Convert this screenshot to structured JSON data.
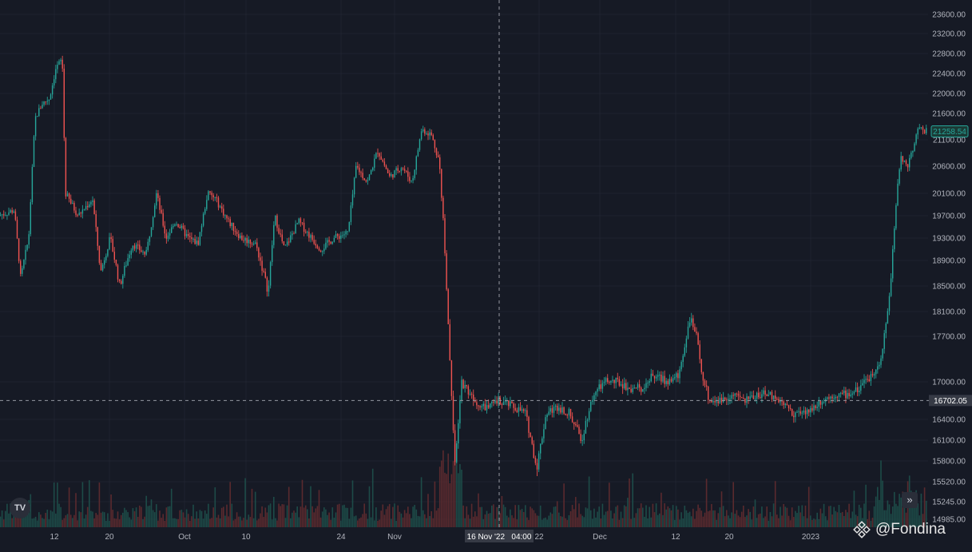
{
  "chart_data": {
    "type": "candlestick",
    "price_axis": {
      "ticks": [
        "23600.00",
        "23200.00",
        "22800.00",
        "22400.00",
        "22000.00",
        "21600.00",
        "21100.00",
        "20600.00",
        "20100.00",
        "19700.00",
        "19300.00",
        "18900.00",
        "18500.00",
        "18100.00",
        "17700.00",
        "17000.00",
        "16400.00",
        "16100.00",
        "15800.00",
        "15520.00",
        "15245.00",
        "14985.00"
      ],
      "last_price_label": "21258.54",
      "crosshair_price_label": "16702.05"
    },
    "time_axis": {
      "ticks": [
        "12",
        "20",
        "Oct",
        "10",
        "24",
        "Nov",
        "22",
        "Dec",
        "12",
        "20",
        "2023"
      ],
      "crosshair_time_label": "16 Nov '22   04:00"
    },
    "series_path": [
      [
        0,
        19700
      ],
      [
        20,
        19800
      ],
      [
        28,
        18600
      ],
      [
        38,
        19300
      ],
      [
        46,
        21500
      ],
      [
        55,
        21800
      ],
      [
        64,
        21900
      ],
      [
        72,
        22500
      ],
      [
        80,
        22700
      ],
      [
        84,
        20100
      ],
      [
        100,
        19700
      ],
      [
        118,
        20000
      ],
      [
        128,
        18700
      ],
      [
        140,
        19300
      ],
      [
        152,
        18500
      ],
      [
        168,
        19200
      ],
      [
        185,
        19000
      ],
      [
        198,
        20100
      ],
      [
        210,
        19300
      ],
      [
        222,
        19600
      ],
      [
        238,
        19300
      ],
      [
        250,
        19200
      ],
      [
        262,
        20100
      ],
      [
        272,
        20000
      ],
      [
        288,
        19600
      ],
      [
        304,
        19300
      ],
      [
        322,
        19200
      ],
      [
        338,
        18400
      ],
      [
        346,
        19700
      ],
      [
        358,
        19100
      ],
      [
        376,
        19600
      ],
      [
        392,
        19300
      ],
      [
        404,
        19100
      ],
      [
        420,
        19300
      ],
      [
        438,
        19400
      ],
      [
        448,
        20600
      ],
      [
        462,
        20300
      ],
      [
        475,
        20900
      ],
      [
        490,
        20400
      ],
      [
        505,
        20600
      ],
      [
        518,
        20300
      ],
      [
        530,
        21300
      ],
      [
        542,
        21200
      ],
      [
        552,
        20700
      ],
      [
        558,
        19400
      ],
      [
        564,
        17700
      ],
      [
        572,
        15700
      ],
      [
        580,
        17000
      ],
      [
        592,
        16800
      ],
      [
        604,
        16600
      ],
      [
        615,
        16600
      ],
      [
        628,
        16700
      ],
      [
        645,
        16600
      ],
      [
        660,
        16500
      ],
      [
        674,
        15700
      ],
      [
        686,
        16500
      ],
      [
        700,
        16600
      ],
      [
        715,
        16500
      ],
      [
        730,
        16100
      ],
      [
        745,
        16800
      ],
      [
        760,
        17000
      ],
      [
        775,
        17000
      ],
      [
        790,
        16900
      ],
      [
        805,
        16900
      ],
      [
        820,
        17100
      ],
      [
        838,
        17000
      ],
      [
        852,
        17100
      ],
      [
        866,
        18000
      ],
      [
        874,
        17700
      ],
      [
        880,
        17200
      ],
      [
        890,
        16700
      ],
      [
        905,
        16700
      ],
      [
        918,
        16800
      ],
      [
        935,
        16700
      ],
      [
        950,
        16800
      ],
      [
        965,
        16800
      ],
      [
        980,
        16700
      ],
      [
        995,
        16500
      ],
      [
        1012,
        16500
      ],
      [
        1030,
        16700
      ],
      [
        1048,
        16800
      ],
      [
        1064,
        16800
      ],
      [
        1080,
        16900
      ],
      [
        1092,
        17100
      ],
      [
        1104,
        17300
      ],
      [
        1112,
        17900
      ],
      [
        1118,
        18700
      ],
      [
        1124,
        19900
      ],
      [
        1130,
        20800
      ],
      [
        1138,
        20600
      ],
      [
        1146,
        21000
      ],
      [
        1152,
        21300
      ],
      [
        1160,
        21258.54
      ]
    ]
  }
}
